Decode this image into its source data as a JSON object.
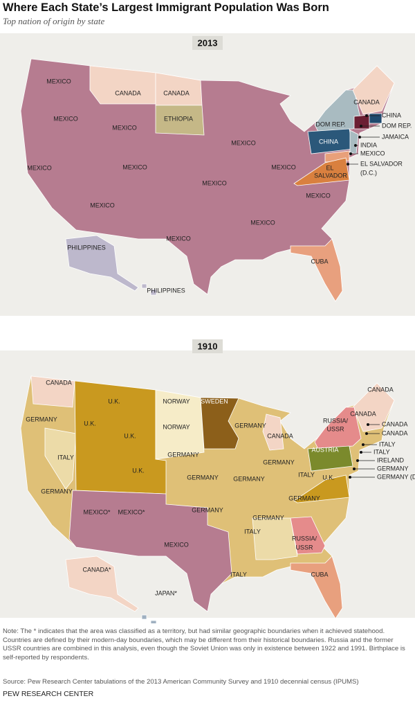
{
  "header": {
    "title": "Where Each State’s Largest Immigrant Population Was Born",
    "subtitle": "Top nation of origin by state"
  },
  "maps": [
    {
      "year": "2013",
      "labels": [
        "MEXICO",
        "CANADA",
        "CANADA",
        "CANADA",
        "MEXICO",
        "MEXICO",
        "ETHIOPIA",
        "DOM REP.",
        "CHINA",
        "DOM REP.",
        "MEXICO",
        "CHINA",
        "JAMAICA",
        "INDIA",
        "MEXICO",
        "MEXICO",
        "MEXICO",
        "MEXICO",
        "EL SALVADOR",
        "(D.C.)",
        "EL",
        "SALVADOR",
        "MEXICO",
        "MEXICO",
        "MEXICO",
        "MEXICO",
        "MEXICO",
        "CUBA",
        "PHILIPPINES",
        "PHILIPPINES"
      ]
    },
    {
      "year": "1910",
      "labels": [
        "CANADA",
        "CANADA",
        "GERMANY",
        "U.K.",
        "NORWAY",
        "SWEDEN",
        "CANADA",
        "RUSSIA/",
        "USSR",
        "CANADA",
        "CANADA",
        "U.K.",
        "NORWAY",
        "GERMANY",
        "CANADA",
        "ITALY",
        "U.K.",
        "GERMANY",
        "AUSTRIA",
        "ITALY",
        "ITALY",
        "IRELAND",
        "GERMANY",
        "GERMANY",
        "GERMANY",
        "GERMANY",
        "GERMANY",
        "ITALY",
        "U.K.",
        "U.K.",
        "GERMANY (D.C.)",
        "GERMANY",
        "MEXICO*",
        "MEXICO*",
        "GERMANY",
        "GERMANY",
        "RUSSIA/",
        "USSR",
        "ITALY",
        "MEXICO",
        "ITALY",
        "CUBA",
        "CANADA*",
        "JAPAN*"
      ]
    }
  ],
  "note": "Note: The * indicates that the area was classified as a territory, but had similar geographic boundaries when it achieved statehood. Countries are defined by their modern-day boundaries, which may be different from their historical boundaries. Russia and the former USSR countries are combined in this analysis, even though the Soviet Union was only in existence between 1922 and 1991. Birthplace is self-reported by respondents.",
  "source": "Source: Pew Research Center tabulations of the 2013 American Community Survey and 1910 decennial census (IPUMS)",
  "footer": "PEW RESEARCH CENTER"
}
